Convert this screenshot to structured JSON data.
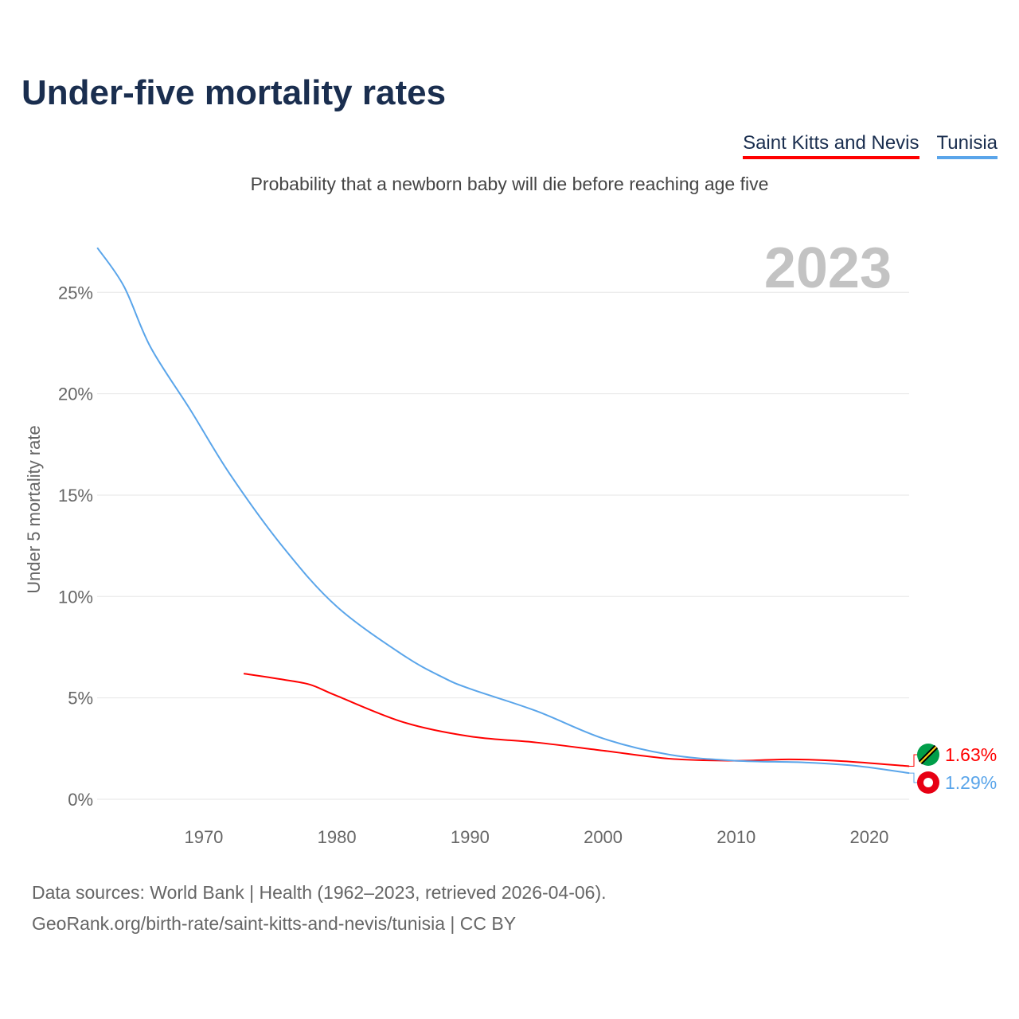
{
  "chart_data": {
    "type": "line",
    "title": "Under-five mortality rates",
    "subtitle": "Probability that a newborn baby will die before reaching age five",
    "ylabel": "Under 5 mortality rate",
    "xlabel": "",
    "year_label": "2023",
    "xlim": [
      1962,
      2023
    ],
    "ylim": [
      0,
      27
    ],
    "grid": true,
    "legend_position": "top-right",
    "x_ticks": [
      "1970",
      "1980",
      "1990",
      "2000",
      "2010",
      "2020"
    ],
    "y_ticks": [
      "0%",
      "5%",
      "10%",
      "15%",
      "20%",
      "25%"
    ],
    "series": [
      {
        "name": "Saint Kitts and Nevis",
        "color": "#ff0000",
        "end_label": "1.63%",
        "x": [
          1973,
          1976,
          1978,
          1980,
          1985,
          1990,
          1995,
          2000,
          2005,
          2010,
          2014,
          2018,
          2023
        ],
        "y": [
          6.2,
          5.9,
          5.65,
          5.1,
          3.8,
          3.1,
          2.8,
          2.4,
          2.0,
          1.9,
          1.97,
          1.88,
          1.63
        ]
      },
      {
        "name": "Tunisia",
        "color": "#5aa5ea",
        "end_label": "1.29%",
        "x": [
          1962,
          1964,
          1966,
          1969,
          1972,
          1976,
          1980,
          1985,
          1988,
          1990,
          1995,
          2000,
          2005,
          2010,
          2015,
          2019,
          2023
        ],
        "y": [
          27.2,
          25.3,
          22.3,
          19.2,
          16.0,
          12.4,
          9.5,
          7.1,
          6.0,
          5.45,
          4.35,
          3.0,
          2.2,
          1.9,
          1.82,
          1.65,
          1.29
        ]
      }
    ]
  },
  "footer": {
    "line1": "Data sources: World Bank | Health (1962–2023, retrieved 2026-04-06).",
    "line2": "GeoRank.org/birth-rate/saint-kitts-and-nevis/tunisia | CC BY"
  }
}
